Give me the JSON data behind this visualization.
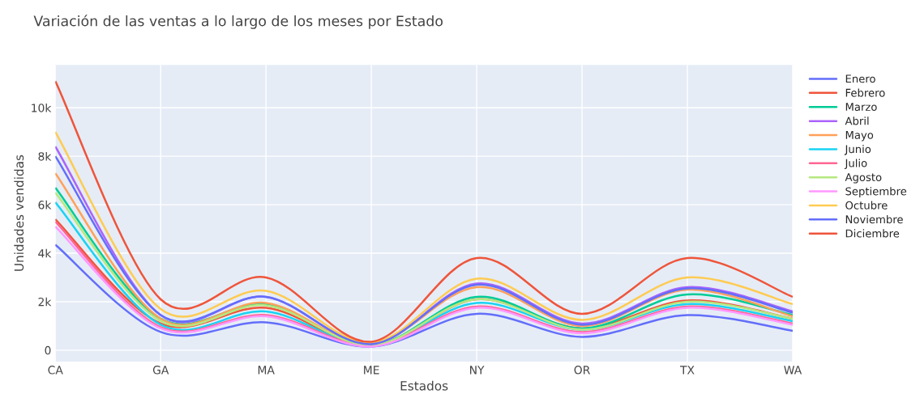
{
  "chart_data": {
    "type": "line",
    "title": "Variación de las ventas a lo largo de los meses por Estado",
    "xlabel": "Estados",
    "ylabel": "Unidades vendidas",
    "categories": [
      "CA",
      "GA",
      "MA",
      "ME",
      "NY",
      "OR",
      "TX",
      "WA"
    ],
    "ylim": [
      -470,
      11770
    ],
    "yticks": [
      0,
      {
        "value": 2000,
        "label": "2k"
      },
      {
        "value": 4000,
        "label": "4k"
      },
      {
        "value": 6000,
        "label": "6k"
      },
      {
        "value": 8000,
        "label": "8k"
      },
      {
        "value": 10000,
        "label": "10k"
      }
    ],
    "grid": true,
    "legend": "top right",
    "line_style": "solid",
    "marker": "none",
    "series": [
      {
        "name": "Enero",
        "color": "#636efa",
        "values": [
          4350,
          750,
          1150,
          150,
          1500,
          550,
          1450,
          800
        ]
      },
      {
        "name": "Febrero",
        "color": "#ef553b",
        "values": [
          5400,
          1100,
          1750,
          200,
          2100,
          900,
          2050,
          1300
        ]
      },
      {
        "name": "Marzo",
        "color": "#00cc96",
        "values": [
          6700,
          1300,
          1900,
          200,
          2200,
          900,
          2300,
          1450
        ]
      },
      {
        "name": "Abril",
        "color": "#ab63fa",
        "values": [
          8400,
          1450,
          2200,
          250,
          2750,
          1100,
          2600,
          1600
        ]
      },
      {
        "name": "Mayo",
        "color": "#ffa15a",
        "values": [
          7300,
          1300,
          1950,
          250,
          2600,
          1000,
          2500,
          1400
        ]
      },
      {
        "name": "Junio",
        "color": "#19d3f3",
        "values": [
          6100,
          1050,
          1600,
          200,
          1950,
          850,
          1900,
          1200
        ]
      },
      {
        "name": "Julio",
        "color": "#ff6692",
        "values": [
          5300,
          950,
          1450,
          200,
          1800,
          750,
          1800,
          1100
        ]
      },
      {
        "name": "Agosto",
        "color": "#b6e880",
        "values": [
          6500,
          1200,
          1850,
          200,
          2100,
          850,
          2000,
          1300
        ]
      },
      {
        "name": "Septiembre",
        "color": "#ff97ff",
        "values": [
          5100,
          900,
          1400,
          150,
          1750,
          700,
          1750,
          1050
        ]
      },
      {
        "name": "Octubre",
        "color": "#fecb52",
        "values": [
          9000,
          1700,
          2450,
          300,
          2950,
          1250,
          3000,
          1900
        ]
      },
      {
        "name": "Noviembre",
        "color": "#636efa",
        "values": [
          8000,
          1450,
          2200,
          250,
          2700,
          1050,
          2550,
          1550
        ]
      },
      {
        "name": "Diciembre",
        "color": "#ef553b",
        "values": [
          11100,
          2100,
          3000,
          350,
          3800,
          1500,
          3800,
          2200
        ]
      }
    ]
  }
}
